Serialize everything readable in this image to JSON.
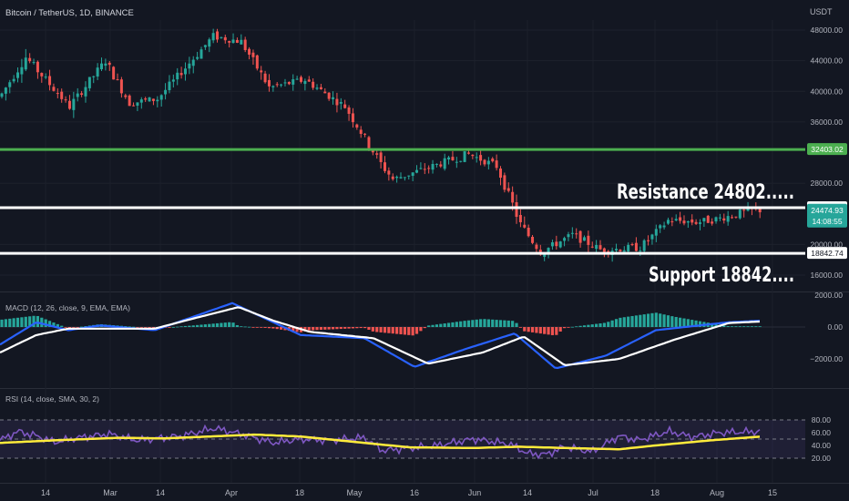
{
  "header": {
    "title": "Bitcoin / TetherUS, 1D, BINANCE",
    "currency": "USDT"
  },
  "price_pane": {
    "y_ticks": [
      "48000.00",
      "44000.00",
      "40000.00",
      "36000.00",
      "28000.00",
      "20000.00",
      "16000.00"
    ],
    "y_tick_values": [
      48000,
      44000,
      40000,
      36000,
      28000,
      20000,
      16000
    ],
    "levels": [
      {
        "name": "green-level",
        "value": 32403.02,
        "label": "32403.02",
        "color": "#4caf50"
      },
      {
        "name": "resistance",
        "value": 24802.59,
        "label": "24802.59",
        "color": "#ffffff"
      },
      {
        "name": "support",
        "value": 18842.74,
        "label": "18842.74",
        "color": "#ffffff"
      }
    ],
    "last_price": {
      "value": 24474.93,
      "label": "24474.93",
      "countdown": "14:08:55",
      "color": "#26a69a"
    },
    "resistance_text": "Resistance 24802.....",
    "support_text": "Support 18842....",
    "up_color": "#26a69a",
    "down_color": "#ef5350"
  },
  "macd_pane": {
    "legend": "MACD (12, 26, close, 9, EMA, EMA)",
    "y_ticks": [
      "2000.00",
      "0.00",
      "−2000.00"
    ],
    "y_tick_values": [
      2000,
      0,
      -2000
    ]
  },
  "rsi_pane": {
    "legend": "RSI (14, close, SMA, 30, 2)",
    "y_ticks": [
      "80.00",
      "60.00",
      "40.00",
      "20.00"
    ],
    "y_tick_values": [
      80,
      60,
      40,
      20
    ]
  },
  "x_axis": {
    "labels": [
      "14",
      "Mar",
      "14",
      "Apr",
      "18",
      "May",
      "16",
      "Jun",
      "14",
      "Jul",
      "18",
      "Aug",
      "15"
    ]
  },
  "chart_data": {
    "type": "candlestick",
    "title": "Bitcoin / TetherUS, 1D, BINANCE",
    "price_key_points": [
      {
        "date": "Feb 1",
        "close": 38000
      },
      {
        "date": "Feb 9",
        "close": 44500
      },
      {
        "date": "Feb 20",
        "close": 38000
      },
      {
        "date": "Mar 1",
        "close": 44000
      },
      {
        "date": "Mar 7",
        "close": 38500
      },
      {
        "date": "Mar 14",
        "close": 39000
      },
      {
        "date": "Mar 28",
        "close": 47200
      },
      {
        "date": "Apr 4",
        "close": 46500
      },
      {
        "date": "Apr 11",
        "close": 40500
      },
      {
        "date": "Apr 20",
        "close": 41500
      },
      {
        "date": "Apr 30",
        "close": 38000
      },
      {
        "date": "May 9",
        "close": 30500
      },
      {
        "date": "May 12",
        "close": 28500
      },
      {
        "date": "May 31",
        "close": 31800
      },
      {
        "date": "Jun 7",
        "close": 30200
      },
      {
        "date": "Jun 13",
        "close": 22500
      },
      {
        "date": "Jun 18",
        "close": 19000
      },
      {
        "date": "Jun 26",
        "close": 21300
      },
      {
        "date": "Jul 3",
        "close": 19300
      },
      {
        "date": "Jul 13",
        "close": 19600
      },
      {
        "date": "Jul 20",
        "close": 23200
      },
      {
        "date": "Jul 27",
        "close": 22900
      },
      {
        "date": "Aug 1",
        "close": 23300
      },
      {
        "date": "Aug 10",
        "close": 24470
      }
    ],
    "horizontal_levels": [
      32403.02,
      24802.59,
      18842.74
    ],
    "last_price": 24474.93,
    "macd": {
      "ylim": [
        -3000,
        3000
      ]
    },
    "rsi": {
      "ylim": [
        15,
        85
      ],
      "bands": [
        80,
        50,
        20
      ]
    }
  }
}
